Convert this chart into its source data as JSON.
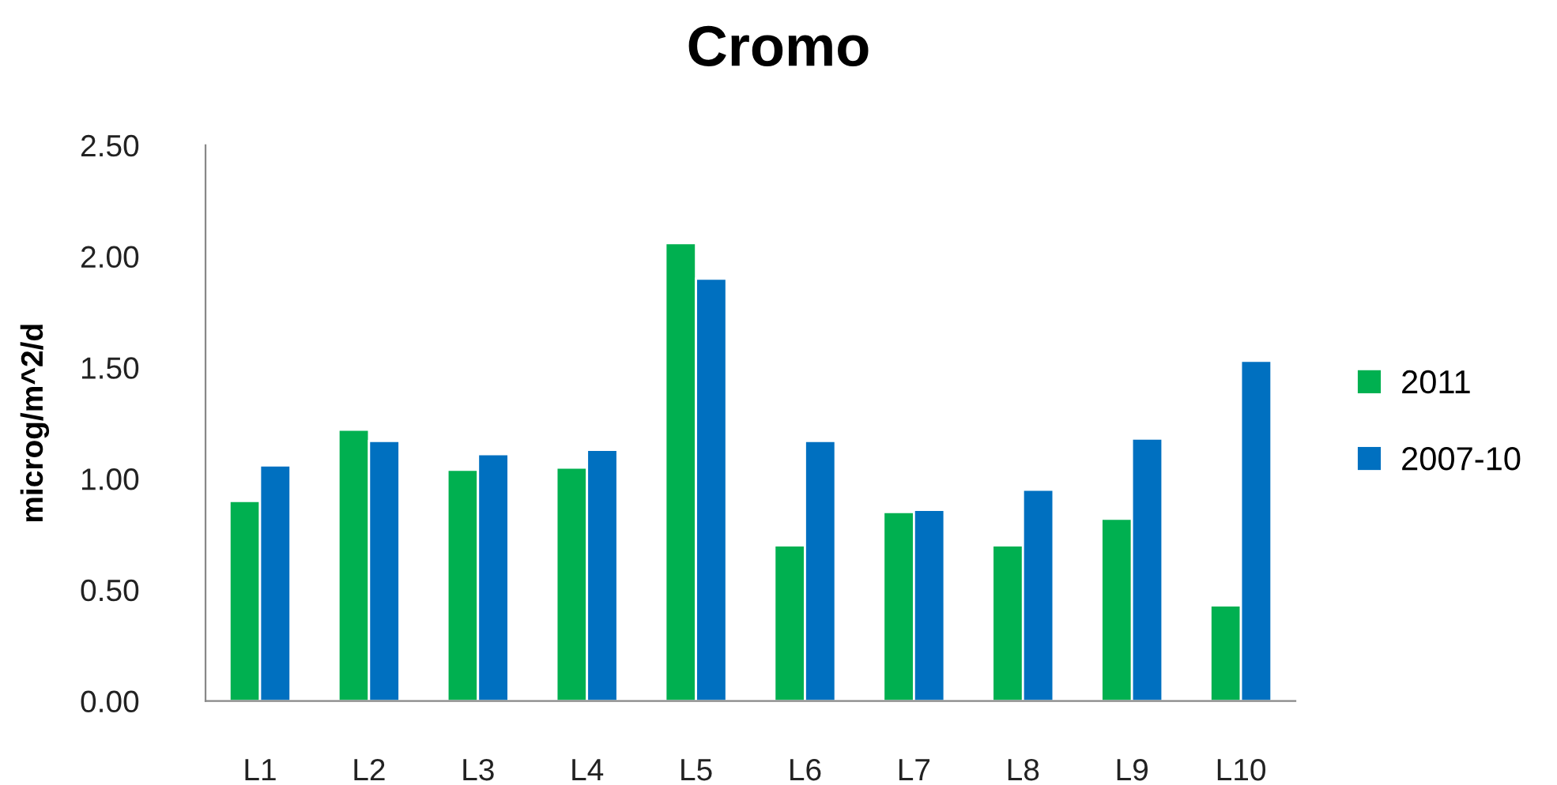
{
  "chart_data": {
    "type": "bar",
    "title": "Cromo",
    "ylabel": "microg/m^2/d",
    "categories": [
      "L1",
      "L2",
      "L3",
      "L4",
      "L5",
      "L6",
      "L7",
      "L8",
      "L9",
      "L10"
    ],
    "series": [
      {
        "name": "2011",
        "color": "#00b050",
        "values": [
          0.9,
          1.22,
          1.04,
          1.05,
          2.06,
          0.7,
          0.85,
          0.7,
          0.82,
          0.43
        ]
      },
      {
        "name": "2007-10",
        "color": "#0070c0",
        "values": [
          1.06,
          1.17,
          1.11,
          1.13,
          1.9,
          1.17,
          0.86,
          0.95,
          1.18,
          1.53
        ]
      }
    ],
    "ylim": [
      0,
      2.5
    ],
    "yticks": [
      {
        "value": 0,
        "label": "0.00"
      },
      {
        "value": 0.5,
        "label": "0.50"
      },
      {
        "value": 1.0,
        "label": "1.00"
      },
      {
        "value": 1.5,
        "label": "1.50"
      },
      {
        "value": 2.0,
        "label": "2.00"
      },
      {
        "value": 2.5,
        "label": "2.50"
      }
    ],
    "grid": false,
    "legend": "right"
  }
}
